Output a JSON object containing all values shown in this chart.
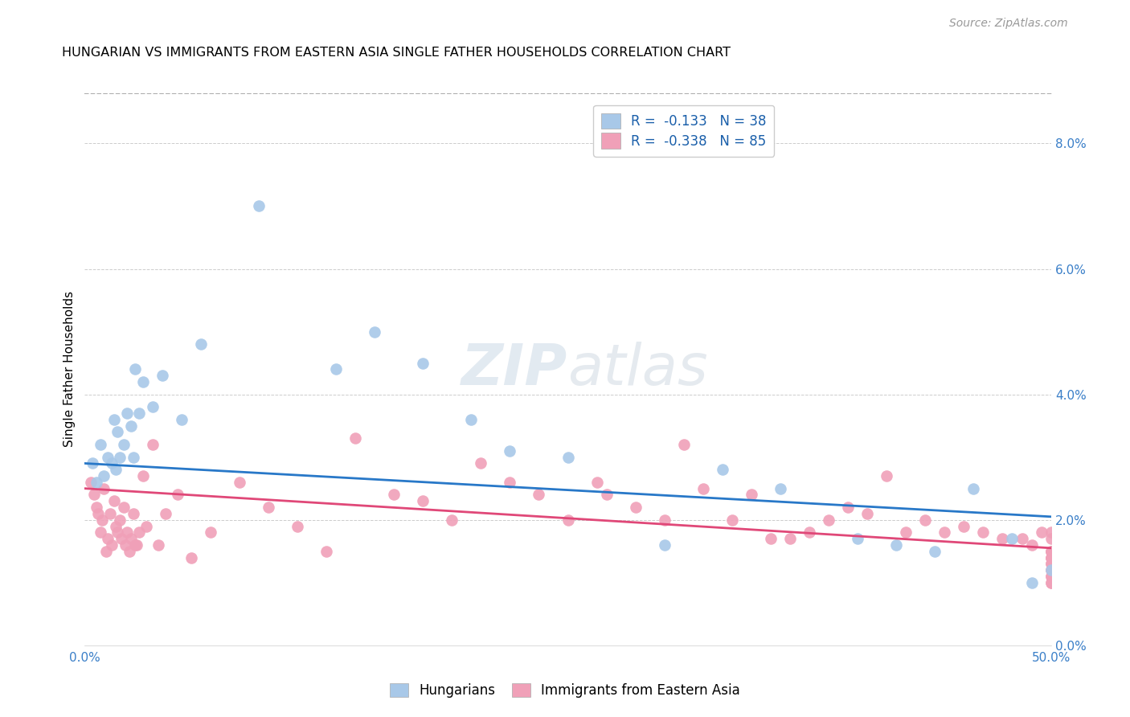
{
  "title": "HUNGARIAN VS IMMIGRANTS FROM EASTERN ASIA SINGLE FATHER HOUSEHOLDS CORRELATION CHART",
  "source": "Source: ZipAtlas.com",
  "ylabel": "Single Father Households",
  "right_ytick_vals": [
    0.0,
    2.0,
    4.0,
    6.0,
    8.0
  ],
  "xlim": [
    0,
    50
  ],
  "ylim": [
    0,
    8.8
  ],
  "legend1_label": "R =  -0.133   N = 38",
  "legend2_label": "R =  -0.338   N = 85",
  "series1_color": "#a8c8e8",
  "series2_color": "#f0a0b8",
  "line1_color": "#2878c8",
  "line2_color": "#e04878",
  "watermark": "ZIPatlas",
  "hun_x": [
    0.4,
    0.6,
    0.8,
    1.0,
    1.2,
    1.4,
    1.5,
    1.6,
    1.7,
    1.8,
    2.0,
    2.2,
    2.4,
    2.5,
    2.6,
    2.8,
    3.0,
    3.5,
    4.0,
    5.0,
    6.0,
    9.0,
    13.0,
    15.0,
    17.5,
    20.0,
    22.0,
    25.0,
    30.0,
    33.0,
    36.0,
    40.0,
    42.0,
    44.0,
    46.0,
    48.0,
    49.0,
    50.0
  ],
  "hun_y": [
    2.9,
    2.6,
    3.2,
    2.7,
    3.0,
    2.9,
    3.6,
    2.8,
    3.4,
    3.0,
    3.2,
    3.7,
    3.5,
    3.0,
    4.4,
    3.7,
    4.2,
    3.8,
    4.3,
    3.6,
    4.8,
    7.0,
    4.4,
    5.0,
    4.5,
    3.6,
    3.1,
    3.0,
    1.6,
    2.8,
    2.5,
    1.7,
    1.6,
    1.5,
    2.5,
    1.7,
    1.0,
    1.2
  ],
  "ea_x": [
    0.3,
    0.5,
    0.6,
    0.7,
    0.8,
    0.9,
    1.0,
    1.1,
    1.2,
    1.3,
    1.4,
    1.5,
    1.6,
    1.7,
    1.8,
    1.9,
    2.0,
    2.1,
    2.2,
    2.3,
    2.4,
    2.5,
    2.6,
    2.7,
    2.8,
    3.0,
    3.2,
    3.5,
    3.8,
    4.2,
    4.8,
    5.5,
    6.5,
    8.0,
    9.5,
    11.0,
    12.5,
    14.0,
    16.0,
    17.5,
    19.0,
    20.5,
    22.0,
    23.5,
    25.0,
    26.5,
    27.0,
    28.5,
    30.0,
    31.0,
    32.0,
    33.5,
    34.5,
    35.5,
    36.5,
    37.5,
    38.5,
    39.5,
    40.5,
    41.5,
    42.5,
    43.5,
    44.5,
    45.5,
    46.5,
    47.5,
    48.5,
    49.0,
    49.5,
    50.0,
    50.0,
    50.0,
    50.0,
    50.0,
    50.0,
    50.0,
    50.0,
    50.0,
    50.0,
    50.0,
    50.0,
    50.0,
    50.0,
    50.0,
    50.0
  ],
  "ea_y": [
    2.6,
    2.4,
    2.2,
    2.1,
    1.8,
    2.0,
    2.5,
    1.5,
    1.7,
    2.1,
    1.6,
    2.3,
    1.9,
    1.8,
    2.0,
    1.7,
    2.2,
    1.6,
    1.8,
    1.5,
    1.7,
    2.1,
    1.6,
    1.6,
    1.8,
    2.7,
    1.9,
    3.2,
    1.6,
    2.1,
    2.4,
    1.4,
    1.8,
    2.6,
    2.2,
    1.9,
    1.5,
    3.3,
    2.4,
    2.3,
    2.0,
    2.9,
    2.6,
    2.4,
    2.0,
    2.6,
    2.4,
    2.2,
    2.0,
    3.2,
    2.5,
    2.0,
    2.4,
    1.7,
    1.7,
    1.8,
    2.0,
    2.2,
    2.1,
    2.7,
    1.8,
    2.0,
    1.8,
    1.9,
    1.8,
    1.7,
    1.7,
    1.6,
    1.8,
    1.8,
    1.7,
    1.5,
    1.5,
    1.5,
    1.4,
    1.4,
    1.3,
    1.3,
    1.2,
    1.4,
    1.2,
    1.1,
    1.1,
    1.0,
    1.0
  ],
  "hun_line_x0": 0.0,
  "hun_line_x1": 50.0,
  "hun_line_y0": 2.9,
  "hun_line_y1": 2.05,
  "ea_line_x0": 0.0,
  "ea_line_x1": 50.0,
  "ea_line_y0": 2.5,
  "ea_line_y1": 1.55
}
